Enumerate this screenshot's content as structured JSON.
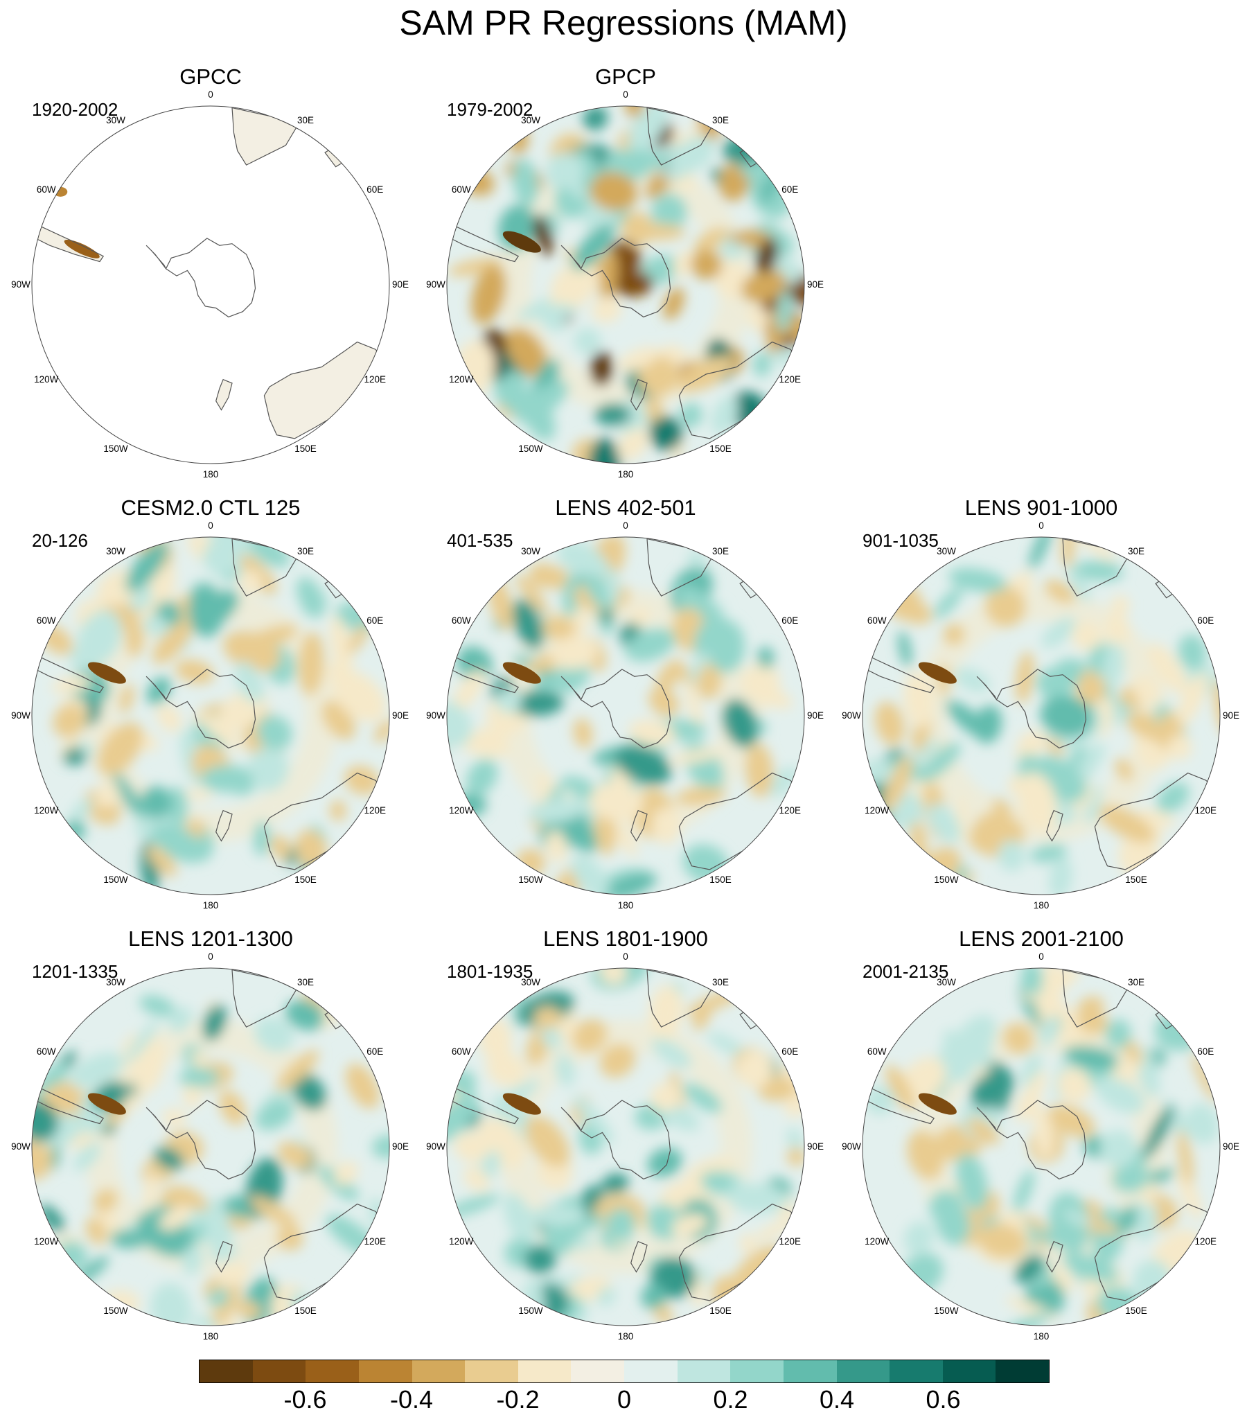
{
  "title": "SAM PR Regressions (MAM)",
  "longitude_labels": {
    "top": "0",
    "bottom": "180",
    "30w": "30W",
    "30e": "30E",
    "60w": "60W",
    "60e": "60E",
    "90w": "90W",
    "90e": "90E",
    "120w": "120W",
    "120e": "120E",
    "150w": "150W",
    "150e": "150E"
  },
  "panels": [
    {
      "title": "GPCC",
      "period": "1920-2002",
      "coverage": "land-only"
    },
    {
      "title": "GPCP",
      "period": "1979-2002",
      "coverage": "global"
    },
    {
      "title": "CESM2.0 CTL 125",
      "period": "20-126",
      "coverage": "global"
    },
    {
      "title": "LENS 402-501",
      "period": "401-535",
      "coverage": "global"
    },
    {
      "title": "LENS 901-1000",
      "period": "901-1035",
      "coverage": "global"
    },
    {
      "title": "LENS 1201-1300",
      "period": "1201-1335",
      "coverage": "global"
    },
    {
      "title": "LENS 1801-1900",
      "period": "1801-1935",
      "coverage": "global"
    },
    {
      "title": "LENS 2001-2100",
      "period": "2001-2135",
      "coverage": "global"
    }
  ],
  "colorbar": {
    "colors": [
      "#5e3a0d",
      "#7d4b11",
      "#9a6019",
      "#bb8433",
      "#d3a95c",
      "#e9cc90",
      "#f6e9c9",
      "#f3efe3",
      "#e3f0ee",
      "#bfe6e0",
      "#93d6ca",
      "#62bcad",
      "#35998a",
      "#177b6e",
      "#065c51",
      "#003c34"
    ],
    "tick_labels": [
      "-0.6",
      "-0.4",
      "-0.2",
      "0",
      "0.2",
      "0.4",
      "0.6"
    ]
  }
}
